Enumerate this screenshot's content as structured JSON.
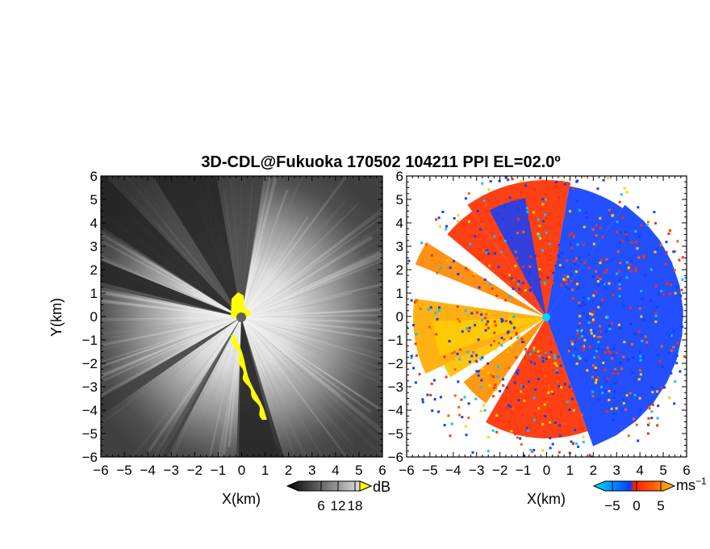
{
  "title": "3D-CDL@Fukuoka 170502 104211 PPI EL=02.0º",
  "chart_data": [
    {
      "type": "heatmap",
      "panel": "reflectivity",
      "xlabel": "X(km)",
      "ylabel": "Y(km)",
      "xlim": [
        -6,
        6
      ],
      "ylim": [
        -6,
        6
      ],
      "xticks": [
        "−6",
        "−5",
        "−4",
        "−3",
        "−2",
        "−1",
        "0",
        "1",
        "2",
        "3",
        "4",
        "5",
        "6"
      ],
      "yticks": [
        "6",
        "5",
        "4",
        "3",
        "2",
        "1",
        "0",
        "−1",
        "−2",
        "−3",
        "−4",
        "−5",
        "−6"
      ],
      "colorbar": {
        "ticks": [
          "6",
          "12",
          "18"
        ],
        "values": [
          6,
          12,
          18
        ],
        "unit": "dB",
        "colors": [
          "#000000",
          "#ffffff"
        ],
        "over_color": "#ffff00"
      },
      "colors": {
        "background": "#3a3a3a",
        "highlight": "#ffff00",
        "center": "#606060"
      }
    },
    {
      "type": "heatmap",
      "panel": "doppler-velocity",
      "xlabel": "X(km)",
      "xlim": [
        -6,
        6
      ],
      "ylim": [
        -6,
        6
      ],
      "xticks": [
        "−6",
        "−5",
        "−4",
        "−3",
        "−2",
        "−1",
        "0",
        "1",
        "2",
        "3",
        "4",
        "5",
        "6"
      ],
      "yticks": [
        "6",
        "5",
        "4",
        "3",
        "2",
        "1",
        "0",
        "−1",
        "−2",
        "−3",
        "−4",
        "−5",
        "−6"
      ],
      "colorbar": {
        "ticks": [
          "−5",
          "0",
          "5"
        ],
        "values": [
          -5,
          0,
          5
        ],
        "unit": "ms",
        "unit_exp": "−1",
        "colors": [
          "#00e0ff",
          "#0040ff",
          "#ff2000",
          "#ffd000"
        ]
      },
      "colors": {
        "approaching": "#1040ff",
        "receding": "#ff3000",
        "center": "#00d8ff"
      }
    }
  ]
}
